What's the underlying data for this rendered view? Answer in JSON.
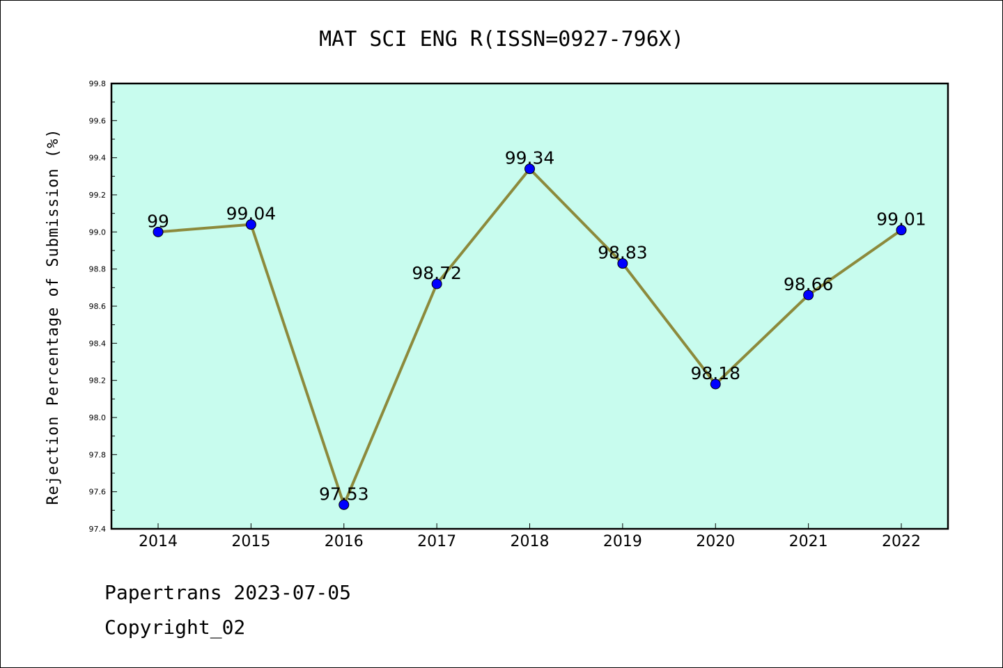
{
  "chart_data": {
    "type": "line",
    "title": "MAT SCI ENG R(ISSN=0927-796X)",
    "ylabel": "Rejection Percentage of Submission (%)",
    "xlabel": "",
    "x": [
      "2014",
      "2015",
      "2016",
      "2017",
      "2018",
      "2019",
      "2020",
      "2021",
      "2022"
    ],
    "values": [
      99,
      99.04,
      97.53,
      98.72,
      99.34,
      98.83,
      98.18,
      98.66,
      99.01
    ],
    "data_labels": [
      "99",
      "99.04",
      "97.53",
      "98.72",
      "99.34",
      "98.83",
      "98.18",
      "98.66",
      "99.01"
    ],
    "ylim": [
      97.4,
      99.8
    ],
    "yticks": [
      "97.4",
      "97.6",
      "97.8",
      "98.0",
      "98.2",
      "98.4",
      "98.6",
      "98.8",
      "99.0",
      "99.2",
      "99.4",
      "99.6",
      "99.8"
    ],
    "grid": false,
    "colors": {
      "plot_background": "#c8fcee",
      "line": "#8c8a3c",
      "marker": "#0000ff"
    }
  },
  "footer": {
    "line1": "Papertrans 2023-07-05",
    "line2": "Copyright_02"
  }
}
